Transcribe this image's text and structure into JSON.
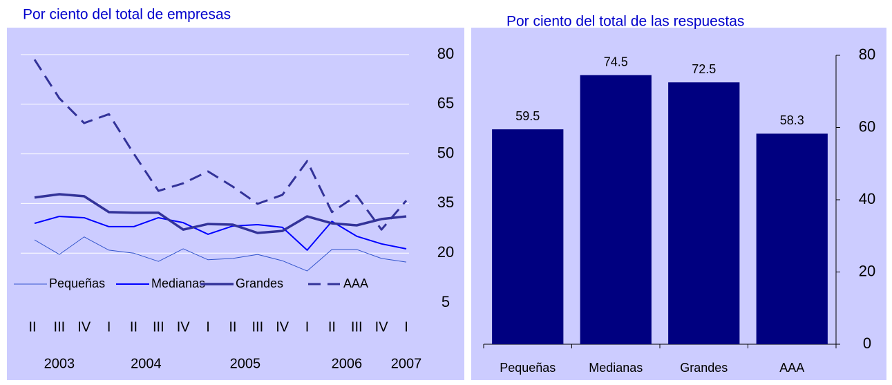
{
  "chart_data": [
    {
      "type": "line",
      "title": "Por ciento del total de empresas",
      "categories": [
        "II",
        "III",
        "IV",
        "I",
        "II",
        "III",
        "IV",
        "I",
        "II",
        "III",
        "IV",
        "I",
        "II",
        "III",
        "IV",
        "I"
      ],
      "year_labels": [
        "2003",
        "2004",
        "2005",
        "2006",
        "2007"
      ],
      "series": [
        {
          "name": "Pequeñas",
          "color": "#3355cc",
          "width": 1,
          "dashed": false,
          "values": [
            24.0,
            19.6,
            24.9,
            20.9,
            20.0,
            17.5,
            21.3,
            18.0,
            18.4,
            19.6,
            17.7,
            14.6,
            21.1,
            21.1,
            18.4,
            17.3
          ]
        },
        {
          "name": "Medianas",
          "color": "#0000ff",
          "width": 2,
          "dashed": false,
          "values": [
            29.0,
            31.1,
            30.7,
            28.0,
            28.0,
            30.7,
            29.2,
            25.7,
            28.2,
            28.6,
            27.8,
            20.9,
            29.6,
            25.1,
            22.8,
            21.3
          ]
        },
        {
          "name": "Grandes",
          "color": "#333399",
          "width": 3.5,
          "dashed": false,
          "values": [
            36.8,
            37.8,
            37.2,
            32.4,
            32.2,
            32.2,
            27.1,
            28.8,
            28.6,
            26.1,
            26.7,
            31.1,
            29.0,
            28.4,
            30.3,
            31.1
          ]
        },
        {
          "name": "AAA",
          "color": "#333399",
          "width": 3,
          "dashed": true,
          "values": [
            78.5,
            66.8,
            59.3,
            62.0,
            50.1,
            38.8,
            41.1,
            44.7,
            40.1,
            34.9,
            37.6,
            47.8,
            32.4,
            37.4,
            27.1,
            35.9
          ]
        }
      ],
      "ylim": [
        5,
        80
      ],
      "yticks": [
        5,
        20,
        35,
        50,
        65,
        80
      ],
      "grid": true,
      "background": "#ccccff"
    },
    {
      "type": "bar",
      "title": "Por ciento del total de las respuestas",
      "categories": [
        "Pequeñas",
        "Medianas",
        "Grandes",
        "AAA"
      ],
      "values": [
        59.5,
        74.5,
        72.5,
        58.3
      ],
      "color": "#000080",
      "ylim": [
        0,
        80
      ],
      "yticks": [
        0,
        20,
        40,
        60,
        80
      ],
      "grid": true,
      "background": "#ccccff"
    }
  ]
}
